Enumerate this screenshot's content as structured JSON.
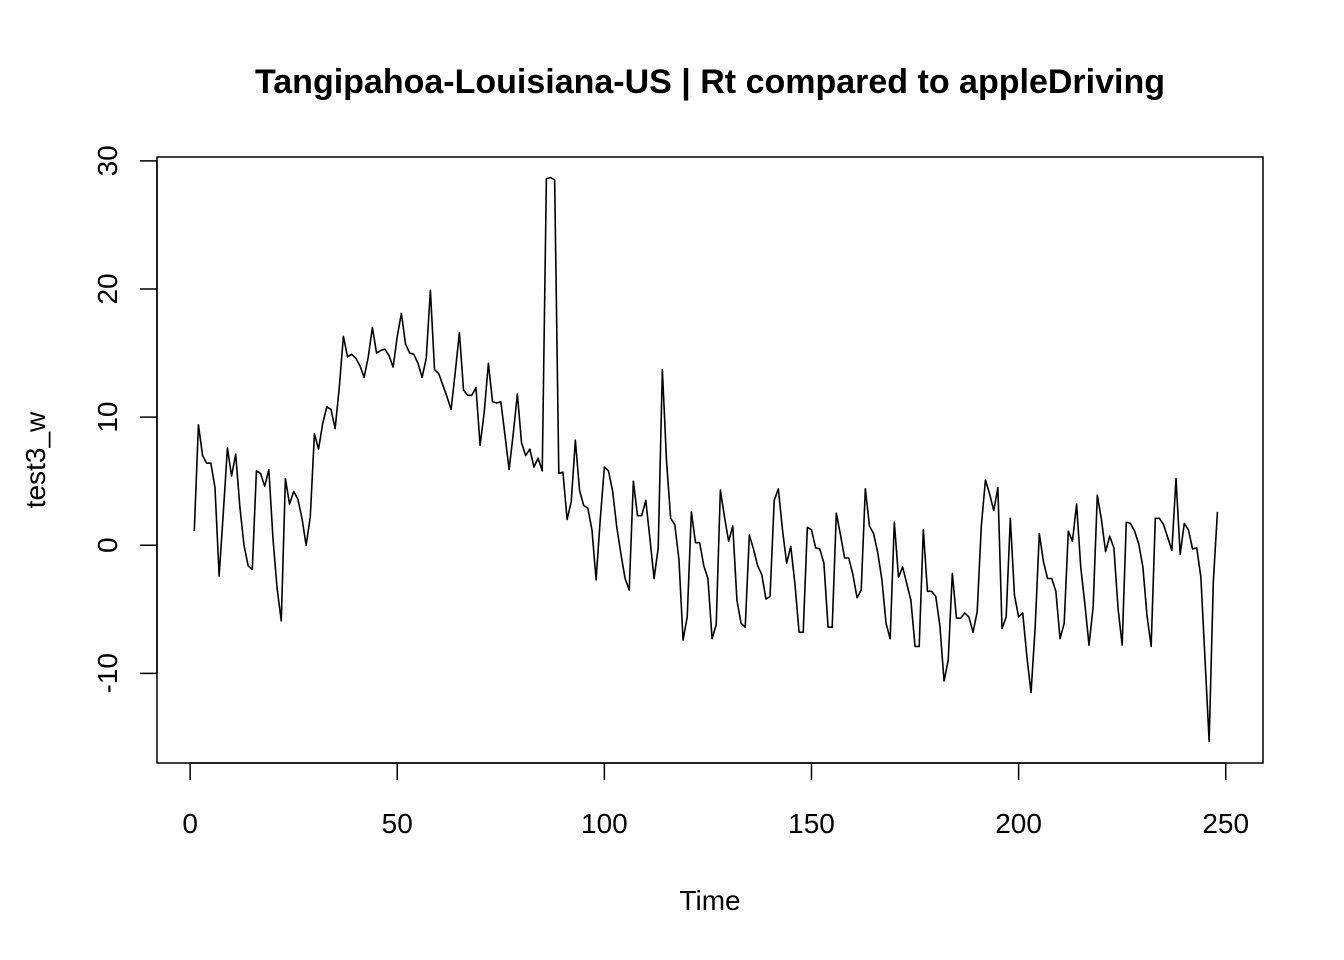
{
  "chart_data": {
    "type": "line",
    "title": "Tangipahoa-Louisiana-US | Rt compared to appleDriving",
    "xlabel": "Time",
    "ylabel": "test3_w",
    "xlim": [
      -8,
      259
    ],
    "ylim": [
      -17,
      30.3
    ],
    "x_ticks": [
      0,
      50,
      100,
      150,
      200,
      250
    ],
    "y_ticks": [
      -10,
      0,
      10,
      20,
      30
    ],
    "x_tick_labels": [
      "0",
      "50",
      "100",
      "150",
      "200",
      "250"
    ],
    "y_tick_labels": [
      "-10",
      "0",
      "10",
      "20",
      "30"
    ],
    "grid": false,
    "legend": "none",
    "line_color": "#000000",
    "series": [
      {
        "x_start": 1,
        "x_step": 1,
        "values": [
          1.1,
          9.4,
          7.0,
          6.4,
          6.4,
          4.5,
          -2.4,
          2.5,
          7.6,
          5.4,
          7.1,
          3.0,
          0.0,
          -1.6,
          -1.9,
          5.8,
          5.6,
          4.6,
          5.9,
          0.5,
          -3.4,
          -5.9,
          5.2,
          3.2,
          4.2,
          3.6,
          2.1,
          0.0,
          2.2,
          8.7,
          7.5,
          9.5,
          10.8,
          10.6,
          9.1,
          12.3,
          16.3,
          14.7,
          14.9,
          14.6,
          14.0,
          13.1,
          14.7,
          17.0,
          15.0,
          15.2,
          15.3,
          14.8,
          13.9,
          16.3,
          18.1,
          15.7,
          15.0,
          14.9,
          14.2,
          13.1,
          14.6,
          19.9,
          13.7,
          13.4,
          12.5,
          11.6,
          10.6,
          13.5,
          16.6,
          12.1,
          11.7,
          11.7,
          12.3,
          7.8,
          10.4,
          14.2,
          11.2,
          11.1,
          11.2,
          8.6,
          5.9,
          8.7,
          11.8,
          8.0,
          7.0,
          7.5,
          6.1,
          6.8,
          5.8,
          28.6,
          28.7,
          28.5,
          5.6,
          5.7,
          2.0,
          3.4,
          8.2,
          4.3,
          3.1,
          2.9,
          1.2,
          -2.7,
          2.0,
          6.1,
          5.8,
          4.2,
          1.4,
          -0.7,
          -2.6,
          -3.5,
          5.0,
          2.3,
          2.3,
          3.5,
          0.5,
          -2.6,
          -0.2,
          13.7,
          6.6,
          2.1,
          1.6,
          -1.1,
          -7.4,
          -5.6,
          2.6,
          0.2,
          0.2,
          -1.6,
          -2.6,
          -7.3,
          -6.2,
          4.3,
          2.2,
          0.3,
          1.5,
          -4.3,
          -6.1,
          -6.4,
          0.8,
          -0.3,
          -1.6,
          -2.3,
          -4.2,
          -4.0,
          3.5,
          4.4,
          1.2,
          -1.4,
          -0.1,
          -3.0,
          -6.8,
          -6.8,
          1.4,
          1.2,
          -0.2,
          -0.3,
          -1.4,
          -6.4,
          -6.4,
          2.5,
          0.8,
          -1.0,
          -1.0,
          -2.3,
          -4.1,
          -3.5,
          4.4,
          1.5,
          0.9,
          -0.6,
          -2.7,
          -6.1,
          -7.3,
          1.8,
          -2.5,
          -1.7,
          -3.0,
          -4.3,
          -7.9,
          -7.9,
          1.2,
          -3.6,
          -3.6,
          -4.0,
          -6.3,
          -10.6,
          -9.0,
          -2.2,
          -5.7,
          -5.7,
          -5.3,
          -5.6,
          -6.8,
          -5.2,
          1.5,
          5.1,
          4.0,
          2.7,
          4.5,
          -6.5,
          -5.6,
          2.1,
          -3.9,
          -5.6,
          -5.3,
          -8.7,
          -11.5,
          -6.4,
          0.9,
          -1.3,
          -2.6,
          -2.6,
          -3.6,
          -7.3,
          -6.1,
          1.1,
          0.3,
          3.2,
          -1.7,
          -4.6,
          -7.8,
          -4.8,
          3.9,
          2.0,
          -0.5,
          0.7,
          -0.2,
          -4.9,
          -7.8,
          1.8,
          1.7,
          1.1,
          0.1,
          -1.7,
          -5.5,
          -7.9,
          2.1,
          2.1,
          1.6,
          0.6,
          -0.4,
          5.2,
          -0.7,
          1.7,
          1.2,
          -0.3,
          -0.2,
          -2.5,
          -8.9,
          -15.3,
          -2.9,
          2.6
        ]
      }
    ]
  }
}
